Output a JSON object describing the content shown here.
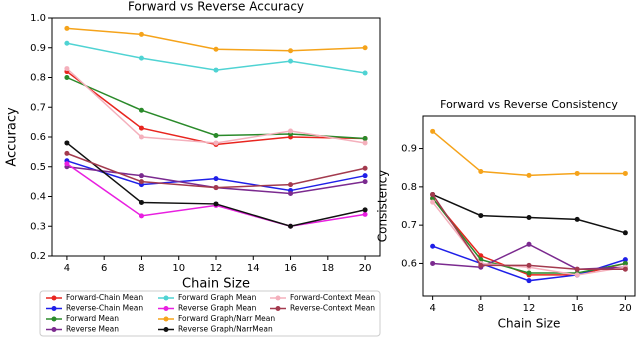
{
  "chart_data": [
    {
      "type": "line",
      "title": "Forward vs Reverse Accuracy",
      "xlabel": "Chain Size",
      "ylabel": "Accuracy",
      "x": [
        4,
        8,
        12,
        16,
        20
      ],
      "xlim": [
        3.2,
        20.8
      ],
      "xticks": [
        4,
        6,
        8,
        10,
        12,
        14,
        16,
        18,
        20
      ],
      "ylim": [
        0.2,
        1.0
      ],
      "yticks": [
        0.2,
        0.3,
        0.4,
        0.5,
        0.6,
        0.7,
        0.8,
        0.9,
        {
          "value": 1.0,
          "label": "1.0"
        }
      ],
      "legend": "below",
      "series": [
        {
          "name": "Forward-Chain Mean",
          "color": "#e8251f",
          "values": [
            0.82,
            0.63,
            0.575,
            0.6,
            0.595
          ]
        },
        {
          "name": "Reverse-Chain Mean",
          "color": "#1f1fe8",
          "values": [
            0.52,
            0.44,
            0.46,
            0.42,
            0.47
          ]
        },
        {
          "name": "Forward Mean",
          "color": "#2a8a2a",
          "values": [
            0.8,
            0.69,
            0.605,
            0.61,
            0.595
          ]
        },
        {
          "name": "Reverse Mean",
          "color": "#7b2a8f",
          "values": [
            0.5,
            0.47,
            0.43,
            0.41,
            0.45
          ]
        },
        {
          "name": "Forward Graph Mean",
          "color": "#4fd3d3",
          "values": [
            0.915,
            0.865,
            0.825,
            0.855,
            0.815
          ]
        },
        {
          "name": "Reverse Graph Mean",
          "color": "#e81fe0",
          "values": [
            0.51,
            0.335,
            0.37,
            0.3,
            0.34
          ]
        },
        {
          "name": "Forward Graph/Narr Mean",
          "color": "#f5a31a",
          "values": [
            0.965,
            0.945,
            0.895,
            0.89,
            0.9
          ]
        },
        {
          "name": "Reverse Graph/NarrMean",
          "color": "#111111",
          "values": [
            0.58,
            0.38,
            0.375,
            0.3,
            0.355
          ]
        },
        {
          "name": "Forward-Context Mean",
          "color": "#f4b0bc",
          "values": [
            0.83,
            0.6,
            0.58,
            0.62,
            0.58
          ]
        },
        {
          "name": "Reverse-Context Mean",
          "color": "#a33a4e",
          "values": [
            0.545,
            0.45,
            0.43,
            0.44,
            0.495
          ]
        }
      ]
    },
    {
      "type": "line",
      "title": "Forward vs Reverse Consistency",
      "xlabel": "Chain Size",
      "ylabel": "Consistency",
      "x": [
        4,
        8,
        12,
        16,
        20
      ],
      "xlim": [
        3.2,
        20.8
      ],
      "xticks": [
        4,
        8,
        12,
        16,
        20
      ],
      "ylim": [
        0.515,
        0.985
      ],
      "yticks": [
        0.6,
        0.7,
        0.8,
        0.9
      ],
      "series": [
        {
          "color": "#e8251f",
          "values": [
            0.77,
            0.62,
            0.57,
            0.57,
            0.6
          ]
        },
        {
          "color": "#1f1fe8",
          "values": [
            0.645,
            0.6,
            0.555,
            0.57,
            0.61
          ]
        },
        {
          "color": "#2a8a2a",
          "values": [
            0.77,
            0.61,
            0.575,
            0.575,
            0.6
          ]
        },
        {
          "color": "#7b2a8f",
          "values": [
            0.6,
            0.59,
            0.65,
            0.585,
            0.59
          ]
        },
        {
          "color": "#f5a31a",
          "values": [
            0.945,
            0.84,
            0.83,
            0.835,
            0.835
          ]
        },
        {
          "color": "#111111",
          "values": [
            0.78,
            0.725,
            0.72,
            0.715,
            0.68
          ]
        },
        {
          "color": "#f4b0bc",
          "values": [
            0.76,
            0.6,
            0.59,
            0.57,
            0.59
          ]
        },
        {
          "color": "#a33a4e",
          "values": [
            0.78,
            0.595,
            0.595,
            0.585,
            0.585
          ]
        }
      ]
    }
  ]
}
